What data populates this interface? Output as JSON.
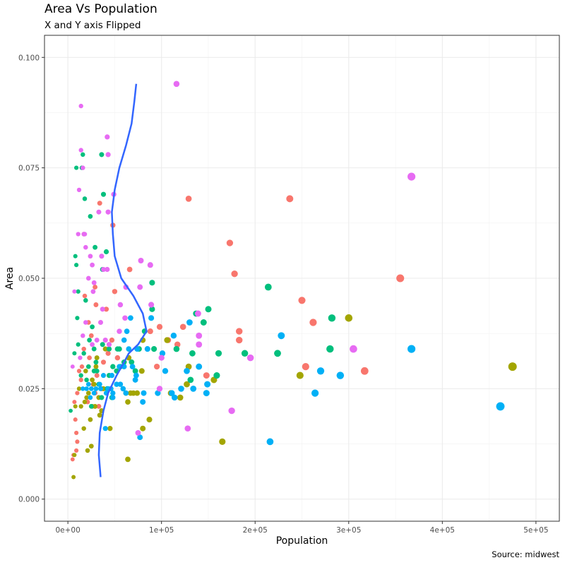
{
  "chart_data": {
    "type": "scatter",
    "title": "Area Vs Population",
    "subtitle": "X and Y axis Flipped",
    "caption": "Source: midwest",
    "xlabel": "Population",
    "ylabel": "Area",
    "xlim": [
      -25000,
      525000
    ],
    "ylim": [
      -0.005,
      0.105
    ],
    "x_ticks": [
      {
        "value": 0,
        "label": "0e+00"
      },
      {
        "value": 100000,
        "label": "1e+05"
      },
      {
        "value": 200000,
        "label": "2e+05"
      },
      {
        "value": 300000,
        "label": "3e+05"
      },
      {
        "value": 400000,
        "label": "4e+05"
      },
      {
        "value": 500000,
        "label": "5e+05"
      }
    ],
    "y_ticks": [
      {
        "value": 0.0,
        "label": "0.000"
      },
      {
        "value": 0.025,
        "label": "0.025"
      },
      {
        "value": 0.05,
        "label": "0.050"
      },
      {
        "value": 0.075,
        "label": "0.075"
      },
      {
        "value": 0.1,
        "label": "0.100"
      }
    ],
    "grid": true,
    "legend": "none",
    "colors": {
      "red": "#F8766D",
      "olive": "#A3A500",
      "green": "#00BF7D",
      "blue": "#00B0F6",
      "pink": "#E76BF3",
      "smooth": "#3366FF"
    },
    "series": [
      {
        "color": "red",
        "points": [
          [
            237000,
            0.068
          ],
          [
            129000,
            0.068
          ],
          [
            173000,
            0.058
          ],
          [
            178000,
            0.051
          ],
          [
            250000,
            0.045
          ],
          [
            262000,
            0.04
          ],
          [
            183000,
            0.038
          ],
          [
            183000,
            0.036
          ],
          [
            107000,
            0.036
          ],
          [
            117000,
            0.035
          ],
          [
            355000,
            0.05
          ],
          [
            254000,
            0.03
          ],
          [
            317000,
            0.029
          ],
          [
            148000,
            0.028
          ],
          [
            123000,
            0.039
          ],
          [
            98000,
            0.039
          ],
          [
            48000,
            0.062
          ],
          [
            66000,
            0.052
          ],
          [
            50000,
            0.047
          ],
          [
            30000,
            0.044
          ],
          [
            34000,
            0.067
          ],
          [
            29000,
            0.048
          ],
          [
            18000,
            0.046
          ],
          [
            41000,
            0.043
          ],
          [
            22000,
            0.04
          ],
          [
            25000,
            0.037
          ],
          [
            17000,
            0.034
          ],
          [
            23000,
            0.032
          ],
          [
            12000,
            0.029
          ],
          [
            14000,
            0.027
          ],
          [
            10000,
            0.024
          ],
          [
            7000,
            0.022
          ],
          [
            8000,
            0.018
          ],
          [
            9000,
            0.015
          ],
          [
            10000,
            0.013
          ],
          [
            9000,
            0.011
          ],
          [
            6000,
            0.01
          ],
          [
            5000,
            0.009
          ],
          [
            38000,
            0.031
          ],
          [
            31000,
            0.028
          ],
          [
            27000,
            0.026
          ],
          [
            33000,
            0.021
          ],
          [
            43000,
            0.033
          ],
          [
            47000,
            0.036
          ],
          [
            88000,
            0.038
          ],
          [
            95000,
            0.03
          ],
          [
            17000,
            0.06
          ],
          [
            15000,
            0.03
          ],
          [
            29000,
            0.024
          ],
          [
            21000,
            0.022
          ],
          [
            36000,
            0.025
          ],
          [
            53000,
            0.032
          ]
        ]
      },
      {
        "color": "olive",
        "points": [
          [
            475000,
            0.03
          ],
          [
            300000,
            0.041
          ],
          [
            248000,
            0.028
          ],
          [
            165000,
            0.013
          ],
          [
            156000,
            0.027
          ],
          [
            129000,
            0.03
          ],
          [
            127000,
            0.026
          ],
          [
            120000,
            0.023
          ],
          [
            110000,
            0.024
          ],
          [
            87000,
            0.018
          ],
          [
            80000,
            0.016
          ],
          [
            64000,
            0.009
          ],
          [
            45000,
            0.016
          ],
          [
            25000,
            0.012
          ],
          [
            21000,
            0.011
          ],
          [
            17000,
            0.016
          ],
          [
            7000,
            0.01
          ],
          [
            6000,
            0.005
          ],
          [
            34000,
            0.019
          ],
          [
            29000,
            0.021
          ],
          [
            33000,
            0.023
          ],
          [
            38000,
            0.025
          ],
          [
            20000,
            0.023
          ],
          [
            14000,
            0.021
          ],
          [
            26000,
            0.027
          ],
          [
            19000,
            0.029
          ],
          [
            31000,
            0.032
          ],
          [
            40000,
            0.034
          ],
          [
            62000,
            0.024
          ],
          [
            74000,
            0.024
          ],
          [
            67000,
            0.024
          ],
          [
            70000,
            0.024
          ],
          [
            79000,
            0.029
          ],
          [
            56000,
            0.03
          ],
          [
            80000,
            0.036
          ],
          [
            36000,
            0.02
          ],
          [
            24000,
            0.018
          ],
          [
            65000,
            0.032
          ],
          [
            28000,
            0.026
          ],
          [
            26000,
            0.021
          ],
          [
            22000,
            0.024
          ],
          [
            64000,
            0.022
          ],
          [
            18000,
            0.022
          ],
          [
            8000,
            0.021
          ],
          [
            12000,
            0.025
          ],
          [
            30000,
            0.03
          ],
          [
            106000,
            0.036
          ]
        ]
      },
      {
        "color": "green",
        "points": [
          [
            214000,
            0.048
          ],
          [
            282000,
            0.041
          ],
          [
            280000,
            0.034
          ],
          [
            224000,
            0.033
          ],
          [
            189000,
            0.033
          ],
          [
            161000,
            0.033
          ],
          [
            150000,
            0.043
          ],
          [
            145000,
            0.04
          ],
          [
            137000,
            0.042
          ],
          [
            133000,
            0.033
          ],
          [
            116000,
            0.034
          ],
          [
            92000,
            0.034
          ],
          [
            90000,
            0.049
          ],
          [
            90000,
            0.043
          ],
          [
            76000,
            0.034
          ],
          [
            55000,
            0.034
          ],
          [
            44000,
            0.034
          ],
          [
            37000,
            0.035
          ],
          [
            38000,
            0.069
          ],
          [
            36000,
            0.078
          ],
          [
            16000,
            0.078
          ],
          [
            15000,
            0.075
          ],
          [
            9000,
            0.075
          ],
          [
            18000,
            0.068
          ],
          [
            24000,
            0.064
          ],
          [
            29000,
            0.057
          ],
          [
            41000,
            0.056
          ],
          [
            37000,
            0.052
          ],
          [
            8000,
            0.055
          ],
          [
            9000,
            0.053
          ],
          [
            11000,
            0.047
          ],
          [
            19000,
            0.045
          ],
          [
            10000,
            0.041
          ],
          [
            26000,
            0.039
          ],
          [
            23000,
            0.036
          ],
          [
            28000,
            0.034
          ],
          [
            11000,
            0.035
          ],
          [
            30000,
            0.031
          ],
          [
            22000,
            0.03
          ],
          [
            28000,
            0.029
          ],
          [
            20000,
            0.027
          ],
          [
            14000,
            0.028
          ],
          [
            33000,
            0.026
          ],
          [
            42000,
            0.025
          ],
          [
            47000,
            0.023
          ],
          [
            25000,
            0.021
          ],
          [
            36000,
            0.023
          ],
          [
            3000,
            0.02
          ],
          [
            7000,
            0.033
          ],
          [
            17000,
            0.033
          ],
          [
            31000,
            0.029
          ],
          [
            53000,
            0.034
          ],
          [
            56000,
            0.03
          ],
          [
            60000,
            0.031
          ],
          [
            68000,
            0.031
          ],
          [
            72000,
            0.029
          ],
          [
            82000,
            0.038
          ],
          [
            52000,
            0.029
          ],
          [
            159000,
            0.028
          ],
          [
            131000,
            0.027
          ],
          [
            44000,
            0.028
          ],
          [
            48000,
            0.03
          ]
        ]
      },
      {
        "color": "blue",
        "points": [
          [
            462000,
            0.021
          ],
          [
            367000,
            0.034
          ],
          [
            216000,
            0.013
          ],
          [
            291000,
            0.028
          ],
          [
            270000,
            0.029
          ],
          [
            264000,
            0.024
          ],
          [
            228000,
            0.037
          ],
          [
            148000,
            0.024
          ],
          [
            149000,
            0.026
          ],
          [
            140000,
            0.03
          ],
          [
            134000,
            0.025
          ],
          [
            130000,
            0.04
          ],
          [
            127000,
            0.029
          ],
          [
            121000,
            0.025
          ],
          [
            114000,
            0.023
          ],
          [
            111000,
            0.024
          ],
          [
            113000,
            0.037
          ],
          [
            101000,
            0.033
          ],
          [
            104000,
            0.029
          ],
          [
            96000,
            0.024
          ],
          [
            89000,
            0.041
          ],
          [
            85000,
            0.034
          ],
          [
            80000,
            0.022
          ],
          [
            81000,
            0.024
          ],
          [
            77000,
            0.014
          ],
          [
            72000,
            0.027
          ],
          [
            63000,
            0.038
          ],
          [
            60000,
            0.036
          ],
          [
            67000,
            0.041
          ],
          [
            59000,
            0.025
          ],
          [
            56000,
            0.026
          ],
          [
            48000,
            0.024
          ],
          [
            43000,
            0.025
          ],
          [
            40000,
            0.016
          ],
          [
            35000,
            0.025
          ],
          [
            30000,
            0.025
          ],
          [
            28000,
            0.024
          ],
          [
            24000,
            0.023
          ],
          [
            20000,
            0.025
          ],
          [
            16000,
            0.025
          ],
          [
            22000,
            0.026
          ],
          [
            25000,
            0.025
          ],
          [
            34000,
            0.026
          ],
          [
            41000,
            0.024
          ],
          [
            46000,
            0.025
          ],
          [
            48000,
            0.023
          ],
          [
            55000,
            0.03
          ],
          [
            60000,
            0.03
          ],
          [
            69000,
            0.03
          ],
          [
            74000,
            0.034
          ],
          [
            62000,
            0.024
          ],
          [
            38000,
            0.028
          ],
          [
            47000,
            0.028
          ],
          [
            52000,
            0.026
          ],
          [
            65000,
            0.034
          ],
          [
            73000,
            0.028
          ]
        ]
      },
      {
        "color": "pink",
        "points": [
          [
            116000,
            0.094
          ],
          [
            367000,
            0.073
          ],
          [
            305000,
            0.034
          ],
          [
            195000,
            0.032
          ],
          [
            175000,
            0.02
          ],
          [
            128000,
            0.016
          ],
          [
            140000,
            0.037
          ],
          [
            140000,
            0.035
          ],
          [
            139000,
            0.042
          ],
          [
            100000,
            0.032
          ],
          [
            98000,
            0.025
          ],
          [
            89000,
            0.044
          ],
          [
            78000,
            0.054
          ],
          [
            88000,
            0.053
          ],
          [
            77000,
            0.048
          ],
          [
            62000,
            0.048
          ],
          [
            75000,
            0.015
          ],
          [
            61000,
            0.041
          ],
          [
            56000,
            0.044
          ],
          [
            55000,
            0.038
          ],
          [
            49000,
            0.069
          ],
          [
            42000,
            0.082
          ],
          [
            43000,
            0.078
          ],
          [
            14000,
            0.089
          ],
          [
            14000,
            0.079
          ],
          [
            16000,
            0.075
          ],
          [
            12000,
            0.07
          ],
          [
            17000,
            0.06
          ],
          [
            11000,
            0.06
          ],
          [
            18000,
            0.06
          ],
          [
            19000,
            0.057
          ],
          [
            24000,
            0.055
          ],
          [
            26000,
            0.053
          ],
          [
            36000,
            0.055
          ],
          [
            38000,
            0.052
          ],
          [
            42000,
            0.052
          ],
          [
            43000,
            0.065
          ],
          [
            33000,
            0.065
          ],
          [
            7000,
            0.047
          ],
          [
            27000,
            0.047
          ],
          [
            22000,
            0.05
          ],
          [
            28000,
            0.049
          ],
          [
            37000,
            0.043
          ],
          [
            35000,
            0.04
          ],
          [
            19000,
            0.04
          ],
          [
            16000,
            0.037
          ],
          [
            26000,
            0.035
          ],
          [
            13000,
            0.032
          ],
          [
            5000,
            0.03
          ],
          [
            31000,
            0.036
          ],
          [
            40000,
            0.036
          ],
          [
            44000,
            0.035
          ]
        ]
      }
    ],
    "smooth_line": {
      "color": "smooth",
      "points": [
        [
          35000,
          0.005
        ],
        [
          33000,
          0.01
        ],
        [
          34000,
          0.015
        ],
        [
          38000,
          0.02
        ],
        [
          43000,
          0.024
        ],
        [
          52000,
          0.028
        ],
        [
          60000,
          0.031
        ],
        [
          65000,
          0.033
        ],
        [
          75000,
          0.035
        ],
        [
          84000,
          0.038
        ],
        [
          80000,
          0.042
        ],
        [
          70000,
          0.046
        ],
        [
          57000,
          0.05
        ],
        [
          50000,
          0.055
        ],
        [
          48000,
          0.06
        ],
        [
          47000,
          0.065
        ],
        [
          50000,
          0.07
        ],
        [
          55000,
          0.075
        ],
        [
          62000,
          0.08
        ],
        [
          68000,
          0.085
        ],
        [
          71000,
          0.09
        ],
        [
          73000,
          0.094
        ]
      ]
    }
  }
}
